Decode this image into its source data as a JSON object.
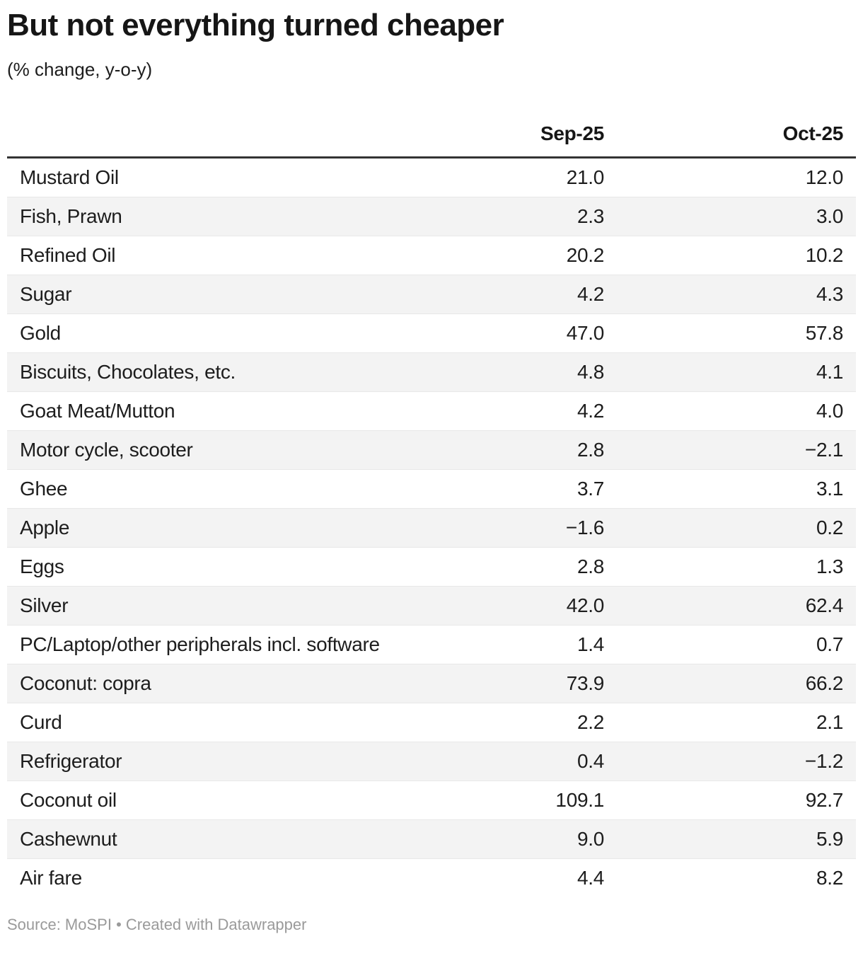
{
  "header": {
    "title": "But not everything turned cheaper",
    "subtitle": "(% change, y-o-y)"
  },
  "chart_data": {
    "type": "table",
    "title": "But not everything turned cheaper",
    "subtitle": "(% change, y-o-y)",
    "columns": [
      "",
      "Sep-25",
      "Oct-25"
    ],
    "categories": [
      "Mustard Oil",
      "Fish, Prawn",
      "Refined Oil",
      "Sugar",
      "Gold",
      "Biscuits, Chocolates, etc.",
      "Goat Meat/Mutton",
      "Motor cycle, scooter",
      "Ghee",
      "Apple",
      "Eggs",
      "Silver",
      "PC/Laptop/other peripherals incl. software",
      "Coconut: copra",
      "Curd",
      "Refrigerator",
      "Coconut oil",
      "Cashewnut",
      "Air fare"
    ],
    "series": [
      {
        "name": "Sep-25",
        "values": [
          21.0,
          2.3,
          20.2,
          4.2,
          47.0,
          4.8,
          4.2,
          2.8,
          3.7,
          -1.6,
          2.8,
          42.0,
          1.4,
          73.9,
          2.2,
          0.4,
          109.1,
          9.0,
          4.4
        ]
      },
      {
        "name": "Oct-25",
        "values": [
          12.0,
          3.0,
          10.2,
          4.3,
          57.8,
          4.1,
          4.0,
          -2.1,
          3.1,
          0.2,
          1.3,
          62.4,
          0.7,
          66.2,
          2.1,
          -1.2,
          92.7,
          5.9,
          8.2
        ]
      }
    ],
    "value_format": "1 decimal place, unicode minus",
    "striped_rows": true,
    "legend_position": "none",
    "grid": "horizontal row dividers"
  },
  "footer": {
    "source_label": "Source: MoSPI",
    "separator": " • ",
    "attribution": "Created with Datawrapper"
  },
  "colors": {
    "title_text": "#161616",
    "body_text": "#1d1d1d",
    "header_rule": "#333333",
    "row_divider": "#e8e8e8",
    "stripe_background": "#f3f3f3",
    "footer_text": "#9a9a9a",
    "background": "#ffffff"
  }
}
